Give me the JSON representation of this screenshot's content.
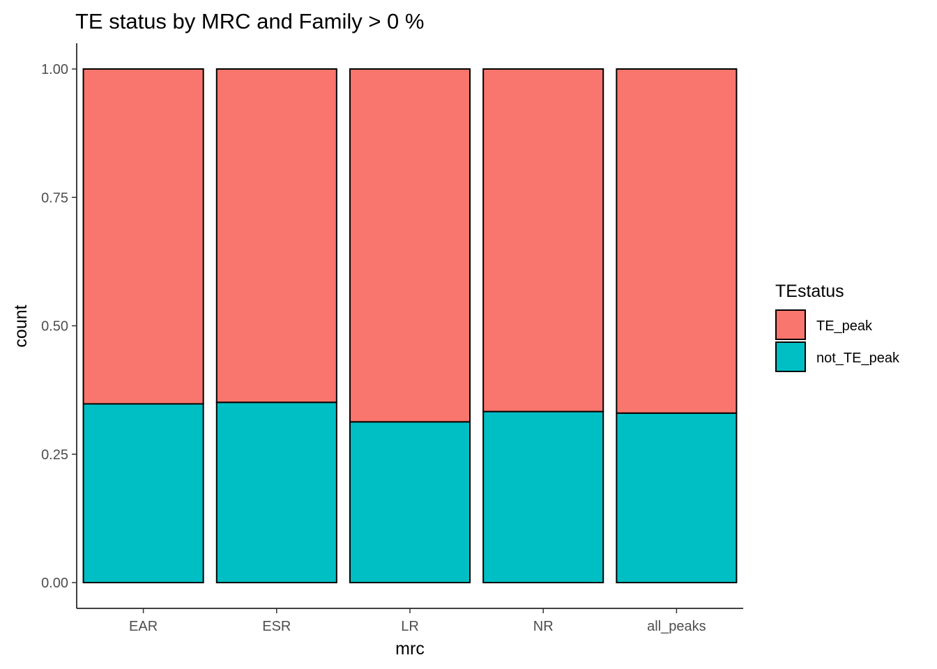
{
  "chart_data": {
    "type": "bar",
    "stacked": true,
    "title": "TE status by MRC and Family > 0 %",
    "xlabel": "mrc",
    "ylabel": "count",
    "categories": [
      "EAR",
      "ESR",
      "LR",
      "NR",
      "all_peaks"
    ],
    "ylim": [
      0,
      1
    ],
    "yticks": [
      0.0,
      0.25,
      0.5,
      0.75,
      1.0
    ],
    "ytick_labels": [
      "0.00",
      "0.25",
      "0.50",
      "0.75",
      "1.00"
    ],
    "grid": false,
    "legend": {
      "title": "TEstatus",
      "position": "right"
    },
    "series": [
      {
        "name": "not_TE_peak",
        "color": "#00BFC4",
        "values": [
          0.348,
          0.351,
          0.313,
          0.333,
          0.33
        ]
      },
      {
        "name": "TE_peak",
        "color": "#F8766D",
        "values": [
          0.652,
          0.649,
          0.687,
          0.667,
          0.67
        ]
      }
    ],
    "legend_order": [
      "TE_peak",
      "not_TE_peak"
    ]
  }
}
